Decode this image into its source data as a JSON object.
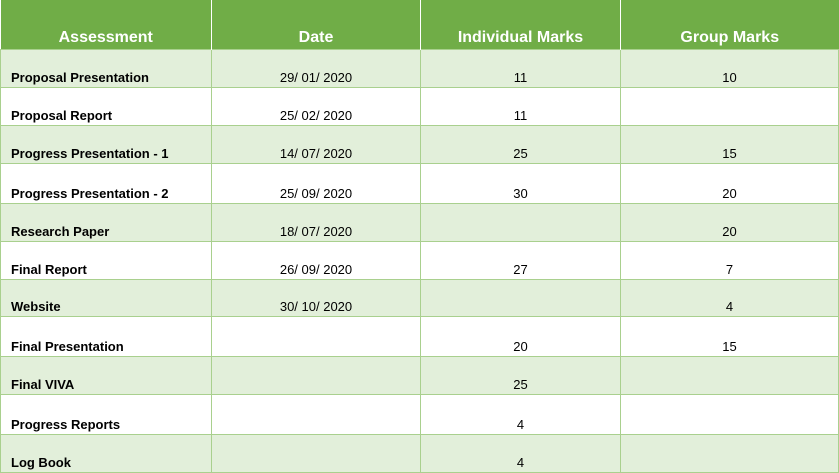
{
  "table": {
    "headers": [
      "Assessment",
      "Date",
      "Individual Marks",
      "Group Marks"
    ],
    "rows": [
      {
        "assessment": "Proposal Presentation",
        "date": "29/ 01/ 2020",
        "individual": "11",
        "group": "10"
      },
      {
        "assessment": "Proposal Report",
        "date": "25/ 02/ 2020",
        "individual": "11",
        "group": ""
      },
      {
        "assessment": "Progress Presentation - 1",
        "date": "14/ 07/ 2020",
        "individual": "25",
        "group": "15"
      },
      {
        "assessment": "Progress Presentation - 2",
        "date": "25/ 09/ 2020",
        "individual": "30",
        "group": "20"
      },
      {
        "assessment": "Research Paper",
        "date": "18/ 07/ 2020",
        "individual": "",
        "group": "20"
      },
      {
        "assessment": "Final Report",
        "date": "26/ 09/ 2020",
        "individual": "27",
        "group": "7"
      },
      {
        "assessment": "Website",
        "date": "30/ 10/ 2020",
        "individual": "",
        "group": "4"
      },
      {
        "assessment": "Final Presentation",
        "date": "",
        "individual": "20",
        "group": "15"
      },
      {
        "assessment": "Final VIVA",
        "date": "",
        "individual": "25",
        "group": ""
      },
      {
        "assessment": "Progress Reports",
        "date": "",
        "individual": "4",
        "group": ""
      },
      {
        "assessment": "Log Book",
        "date": "",
        "individual": "4",
        "group": ""
      }
    ]
  },
  "colors": {
    "header_bg": "#70ad47",
    "band_bg": "#e2efda",
    "border": "#a9d08e"
  }
}
